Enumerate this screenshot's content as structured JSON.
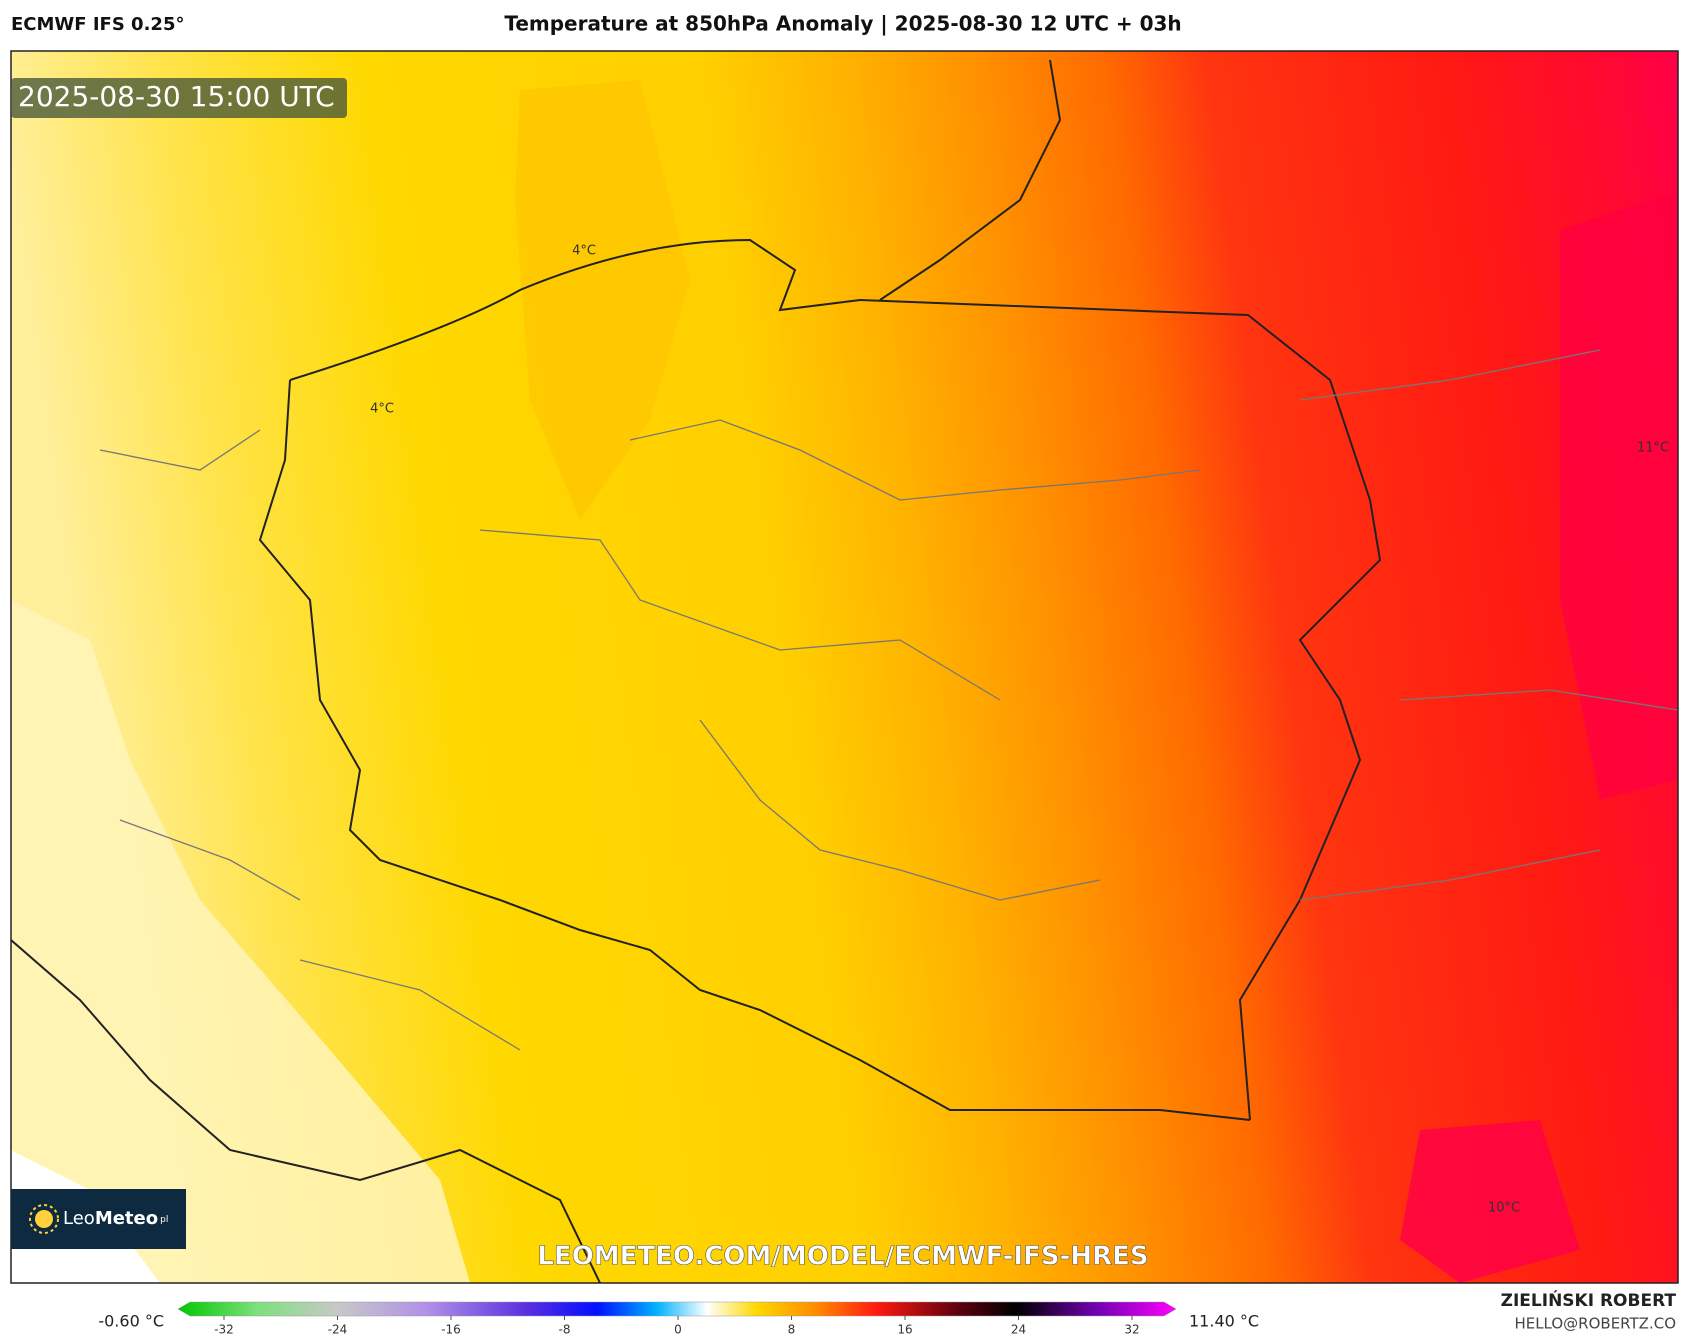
{
  "header": {
    "model": "ECMWF IFS 0.25°",
    "title": "Temperature at 850hPa Anomaly | 2025-08-30 12 UTC + 03h"
  },
  "map": {
    "timestamp": "2025-08-30 15:00 UTC",
    "contour_labels": [
      "4°C",
      "4°C",
      "11°C",
      "10°C"
    ],
    "watermark": "LEOMETEO.COM/MODEL/ECMWF-IFS-HRES"
  },
  "logo": {
    "name_light": "Leo",
    "name_bold": "Meteo",
    "suffix": "pl"
  },
  "colorbar": {
    "min_label": "-0.60 °C",
    "max_label": "11.40 °C",
    "ticks": [
      -32,
      -24,
      -16,
      -8,
      0,
      8,
      16,
      24,
      32
    ]
  },
  "footer": {
    "author": "ZIELIŃSKI ROBERT",
    "email": "HELLO@ROBERTZ.CO"
  }
}
